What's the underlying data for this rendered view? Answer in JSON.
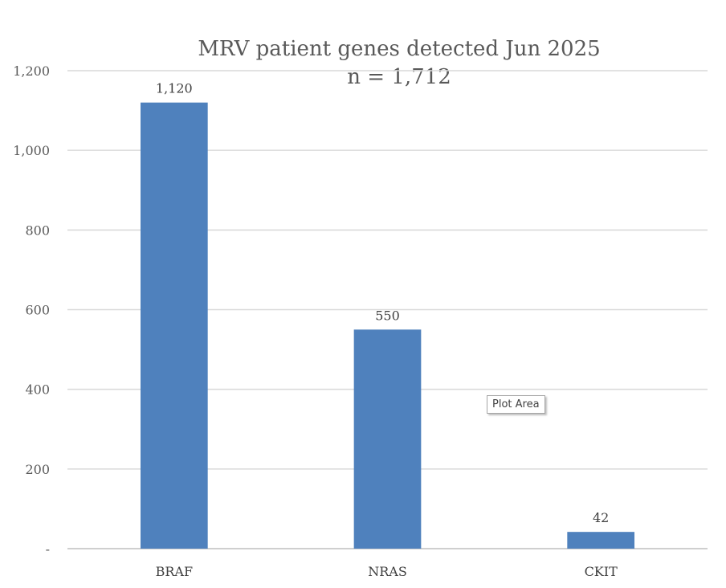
{
  "chart_data": {
    "type": "bar",
    "title": "MRV patient genes detected Jun 2025",
    "subtitle": "n = 1,712",
    "categories": [
      "BRAF",
      "NRAS",
      "CKIT"
    ],
    "values": [
      1120,
      550,
      42
    ],
    "data_labels": [
      "1,120",
      "550",
      "42"
    ],
    "ylim": [
      0,
      1200
    ],
    "y_ticks": [
      0,
      200,
      400,
      600,
      800,
      1000,
      1200
    ],
    "y_tick_labels": [
      "-",
      "200",
      "400",
      "600",
      "800",
      "1,000",
      "1,200"
    ],
    "grid": true,
    "legend": "none",
    "bar_color": "#4f81bd"
  },
  "tooltip": {
    "text": "Plot Area"
  }
}
